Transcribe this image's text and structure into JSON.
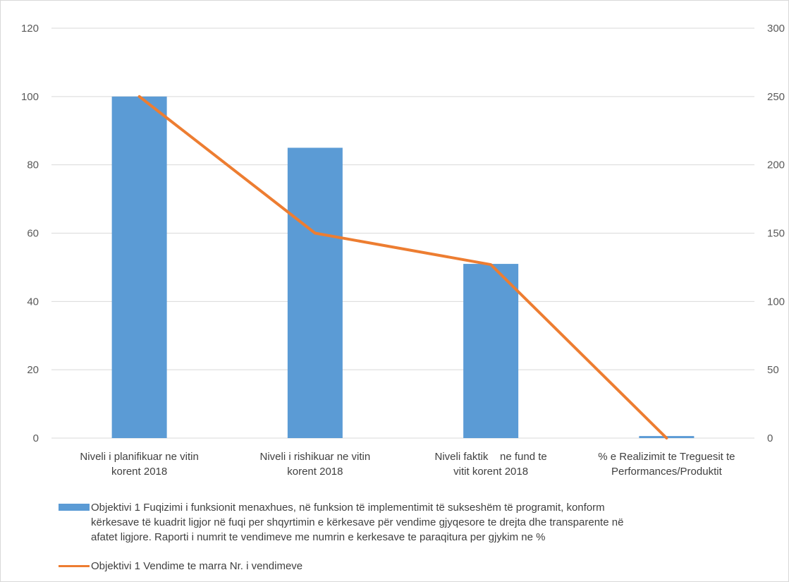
{
  "chart_data": {
    "type": "bar+line",
    "categories": [
      [
        "Niveli i planifikuar ne vitin",
        "korent 2018"
      ],
      [
        "Niveli i rishikuar ne vitin",
        "korent 2018"
      ],
      [
        "Niveli faktik    ne fund te",
        "vitit korent 2018"
      ],
      [
        "% e Realizimit te Treguesit te",
        "Performances/Produktit"
      ]
    ],
    "y_left": {
      "min": 0,
      "max": 120,
      "ticks": [
        "0",
        "20",
        "40",
        "60",
        "80",
        "100",
        "120"
      ]
    },
    "y_right": {
      "min": 0,
      "max": 300,
      "ticks": [
        "0",
        "50",
        "100",
        "150",
        "200",
        "250",
        "300"
      ]
    },
    "series": [
      {
        "kind": "bar",
        "axis": "left",
        "color": "#5b9bd5",
        "values": [
          100,
          85,
          51,
          0.6
        ],
        "name": "Objektivi 1 Fuqizimi i funksionit menaxhues, në funksion të implementimit të sukseshëm të programit, konform kërkesave të kuadrit ligjor në fuqi per shqyrtimin e kërkesave për vendime gjyqesore te drejta dhe transparente në afatet ligjore. Raporti i numrit te vendimeve me numrin e kerkesave te paraqitura per gjykim ne %",
        "name_lines": [
          "Objektivi 1 Fuqizimi i funksionit menaxhues, në funksion të implementimit të sukseshëm të programit, konform",
          "kërkesave të kuadrit ligjor në fuqi per shqyrtimin e kërkesave për vendime gjyqesore te drejta dhe transparente në",
          "afatet ligjore. Raporti i numrit te vendimeve me numrin e kerkesave te paraqitura per gjykim ne %"
        ]
      },
      {
        "kind": "line",
        "axis": "right",
        "color": "#ed7d31",
        "values": [
          250,
          150,
          127,
          0
        ],
        "name": "Objektivi 1 Vendime te marra Nr. i vendimeve"
      }
    ],
    "grid": true,
    "legend_position": "bottom"
  }
}
